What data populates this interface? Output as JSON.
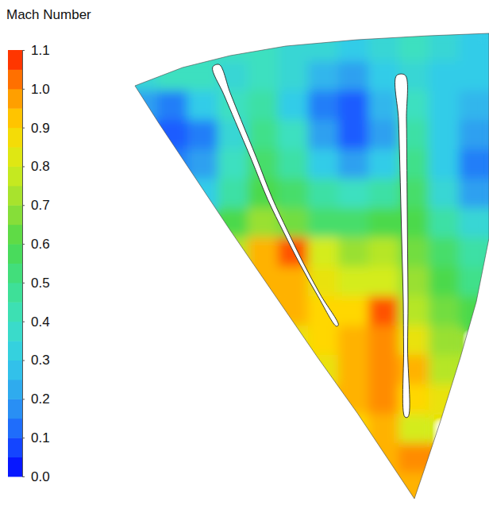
{
  "chart_data": {
    "type": "heatmap",
    "title": "Mach Number",
    "colorbar_range": [
      0,
      1.1
    ],
    "colorbar_ticks": [
      {
        "value": 0,
        "label": "0.0"
      },
      0.1,
      0.2,
      0.3,
      0.4,
      0.5,
      0.6,
      0.7,
      0.8,
      0.9,
      {
        "value": 1,
        "label": "1.0"
      },
      1.1
    ],
    "cells": [
      [
        null,
        null,
        null,
        0.4,
        0.4,
        0.35,
        0.35,
        0.3,
        0.35,
        0.4,
        0.35,
        0.3
      ],
      [
        0.35,
        0.4,
        0.4,
        0.35,
        0.4,
        0.35,
        0.25,
        0.2,
        0.3,
        0.35,
        0.3,
        0.3
      ],
      [
        0.2,
        0.15,
        0.3,
        0.4,
        0.45,
        0.3,
        0.15,
        0.1,
        0.25,
        0.4,
        0.3,
        0.25
      ],
      [
        null,
        0.1,
        0.15,
        0.35,
        0.5,
        0.4,
        0.2,
        0.1,
        0.2,
        0.45,
        0.3,
        0.2
      ],
      [
        null,
        0.15,
        0.2,
        0.4,
        0.55,
        0.45,
        0.3,
        0.2,
        0.3,
        0.5,
        0.3,
        0.15
      ],
      [
        null,
        null,
        0.3,
        0.45,
        0.6,
        0.55,
        0.45,
        0.4,
        0.45,
        0.55,
        0.35,
        0.2
      ],
      [
        null,
        null,
        null,
        0.6,
        0.7,
        0.65,
        0.55,
        0.55,
        0.6,
        0.6,
        0.45,
        0.35
      ],
      [
        null,
        null,
        null,
        0.75,
        0.95,
        1.05,
        0.8,
        0.7,
        0.75,
        0.65,
        0.55,
        0.45
      ],
      [
        null,
        null,
        null,
        null,
        0.95,
        0.95,
        0.85,
        0.8,
        0.8,
        0.7,
        0.6,
        0.5
      ],
      [
        null,
        null,
        null,
        null,
        null,
        0.95,
        0.9,
        0.9,
        1.05,
        0.75,
        0.65,
        0.6
      ],
      [
        null,
        null,
        null,
        null,
        null,
        0.85,
        0.9,
        0.95,
        1.0,
        0.85,
        0.7,
        null
      ],
      [
        null,
        null,
        null,
        null,
        null,
        null,
        0.85,
        0.95,
        1.0,
        0.95,
        0.75,
        null
      ],
      [
        null,
        null,
        null,
        null,
        null,
        null,
        null,
        0.95,
        1.0,
        0.9,
        0.85,
        null
      ],
      [
        null,
        null,
        null,
        null,
        null,
        null,
        null,
        0.9,
        0.95,
        0.8,
        null,
        null
      ],
      [
        null,
        null,
        null,
        null,
        null,
        null,
        null,
        null,
        0.95,
        1.0,
        null,
        null
      ],
      [
        null,
        null,
        null,
        null,
        null,
        null,
        null,
        null,
        0.95,
        0.95,
        null,
        null
      ]
    ]
  }
}
